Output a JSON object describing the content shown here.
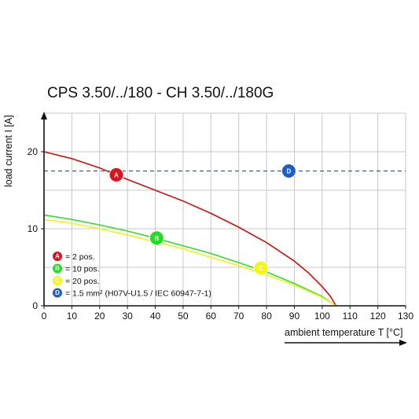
{
  "chart_data": {
    "type": "line",
    "title": "CPS 3.50/../180 - CH 3.50/../180G",
    "xlabel": "ambient temperature T [°C]",
    "ylabel": "load current I [A]",
    "xlim": [
      0,
      130
    ],
    "ylim": [
      0,
      25
    ],
    "x_ticks": [
      0,
      10,
      20,
      30,
      40,
      50,
      60,
      70,
      80,
      90,
      100,
      110,
      120,
      130
    ],
    "y_ticks": [
      0,
      10,
      20
    ],
    "grid": true,
    "legend_position": "bottom-left",
    "series": [
      {
        "marker": "A",
        "color": "#cc1111",
        "x": [
          0,
          10,
          20,
          26,
          30,
          40,
          50,
          60,
          70,
          80,
          90,
          95,
          100,
          103,
          105
        ],
        "y": [
          20.0,
          19.1,
          17.9,
          17.0,
          16.4,
          15.0,
          13.6,
          12.0,
          10.2,
          8.2,
          5.8,
          4.3,
          2.5,
          1.2,
          0
        ]
      },
      {
        "marker": "B",
        "color": "#33dd33",
        "x": [
          0,
          10,
          20,
          30,
          40,
          50,
          60,
          70,
          80,
          90,
          100,
          105
        ],
        "y": [
          11.8,
          11.2,
          10.5,
          9.7,
          8.8,
          7.8,
          6.8,
          5.6,
          4.4,
          2.9,
          1.2,
          0
        ]
      },
      {
        "marker": "C",
        "color": "#f2f21a",
        "x": [
          0,
          10,
          20,
          30,
          40,
          50,
          60,
          70,
          80,
          90,
          100,
          105
        ],
        "y": [
          11.2,
          10.7,
          10.0,
          9.2,
          8.3,
          7.4,
          6.3,
          5.2,
          4.0,
          2.7,
          1.1,
          0
        ]
      },
      {
        "marker": "D",
        "color": "#1f5fc4",
        "style": "dashed",
        "x": [
          0,
          130
        ],
        "y": [
          17.5,
          17.5
        ]
      }
    ],
    "markers": [
      {
        "label": "A",
        "x": 26,
        "y": 17.0,
        "color": "#d9141c"
      },
      {
        "label": "B",
        "x": 40.5,
        "y": 8.8,
        "color": "#22dd22"
      },
      {
        "label": "C",
        "x": 78,
        "y": 4.9,
        "color": "#f5f51a"
      },
      {
        "label": "D",
        "x": 88,
        "y": 17.5,
        "color": "#1f5fc4"
      }
    ],
    "legend": [
      {
        "marker": "A",
        "text": "= 2 pos.",
        "color": "#d9141c"
      },
      {
        "marker": "B",
        "text": "= 10 pos.",
        "color": "#22dd22"
      },
      {
        "marker": "C",
        "text": "= 20 pos.",
        "color": "#f5f51a"
      },
      {
        "marker": "D",
        "text": "= 1.5 mm² (H07V-U1.5 / IEC 60947-7-1)",
        "color": "#1f5fc4"
      }
    ],
    "colors": {
      "grid": "#c8c8c8",
      "axis": "#111111"
    }
  }
}
